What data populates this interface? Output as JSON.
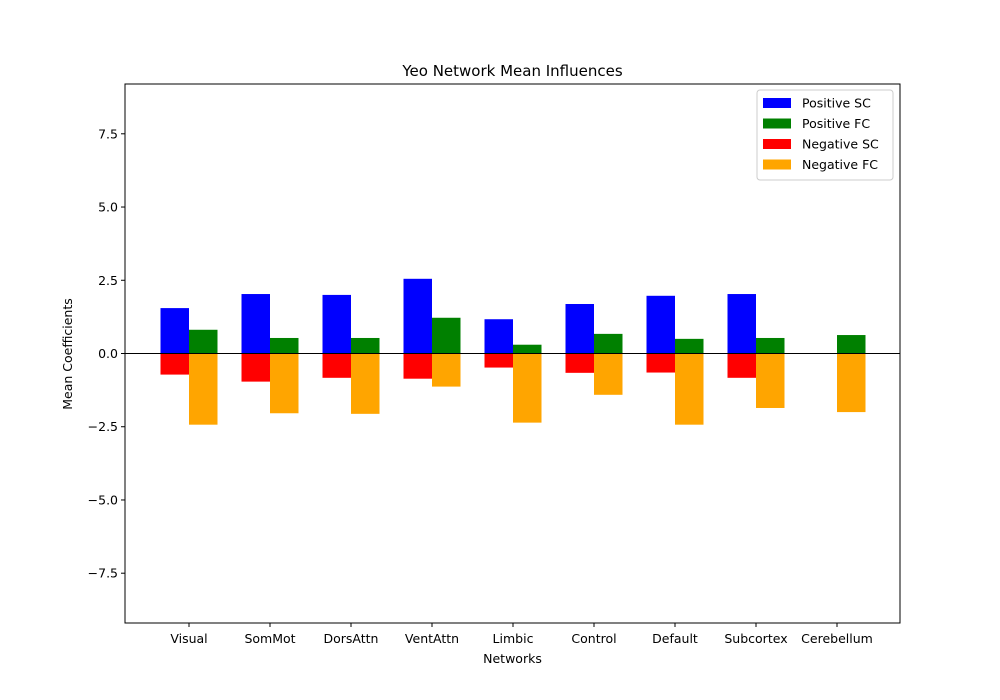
{
  "chart_data": {
    "type": "bar",
    "title": "Yeo Network Mean Influences",
    "xlabel": "Networks",
    "ylabel": "Mean Coefficients",
    "ylim": [
      -9.2,
      9.2
    ],
    "yticks": [
      7.5,
      5.0,
      2.5,
      0.0,
      -2.5,
      -5.0,
      -7.5
    ],
    "ytick_labels": [
      "7.5",
      "5.0",
      "2.5",
      "0.0",
      "−2.5",
      "−5.0",
      "−7.5"
    ],
    "grid": false,
    "legend_position": "top-right",
    "zero_line": true,
    "categories": [
      "Visual",
      "SomMot",
      "DorsAttn",
      "VentAttn",
      "Limbic",
      "Control",
      "Default",
      "Subcortex",
      "Cerebellum"
    ],
    "series": [
      {
        "name": "Positive SC",
        "color": "#0000ff",
        "slot": "left",
        "values": [
          1.55,
          2.03,
          2.0,
          2.55,
          1.17,
          1.69,
          1.97,
          2.03,
          null
        ]
      },
      {
        "name": "Positive FC",
        "color": "#008000",
        "slot": "right",
        "values": [
          0.81,
          0.53,
          0.53,
          1.22,
          0.3,
          0.67,
          0.5,
          0.53,
          0.63
        ]
      },
      {
        "name": "Negative SC",
        "color": "#ff0000",
        "slot": "left",
        "values": [
          -0.72,
          -0.96,
          -0.83,
          -0.86,
          -0.48,
          -0.66,
          -0.65,
          -0.83,
          null
        ]
      },
      {
        "name": "Negative FC",
        "color": "#ffa500",
        "slot": "right",
        "values": [
          -2.43,
          -2.04,
          -2.06,
          -1.13,
          -2.36,
          -1.41,
          -2.43,
          -1.86,
          -2.0
        ]
      }
    ]
  }
}
